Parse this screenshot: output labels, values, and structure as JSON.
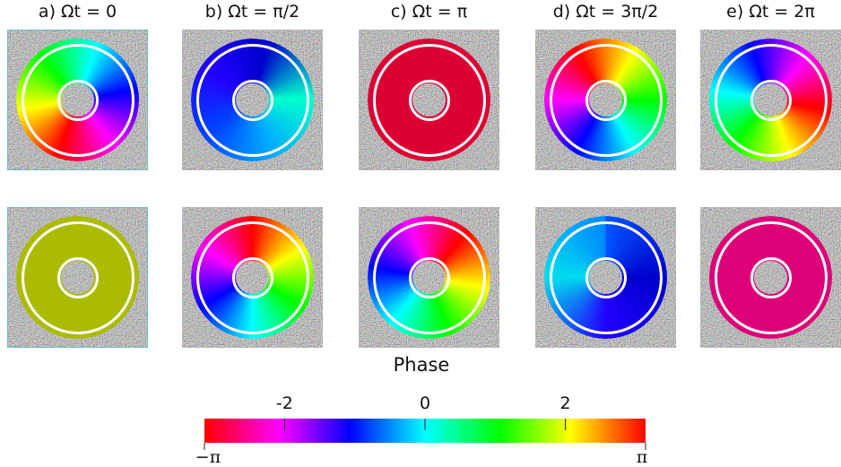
{
  "panels": [
    {
      "title": "a) Ωt = 0"
    },
    {
      "title": "b) Ωt = π/2"
    },
    {
      "title": "c) Ωt = π"
    },
    {
      "title": "d) Ωt = 3π/2"
    },
    {
      "title": "e) Ωt = 2π"
    }
  ],
  "colorbar": {
    "label": "Phase",
    "lim": [
      -3.1416,
      3.1416
    ],
    "ticks": [
      -2,
      0,
      2
    ],
    "end_ticks": [
      {
        "value": -3.1416,
        "label": "−π"
      },
      {
        "value": 3.1416,
        "label": "π"
      }
    ]
  }
}
